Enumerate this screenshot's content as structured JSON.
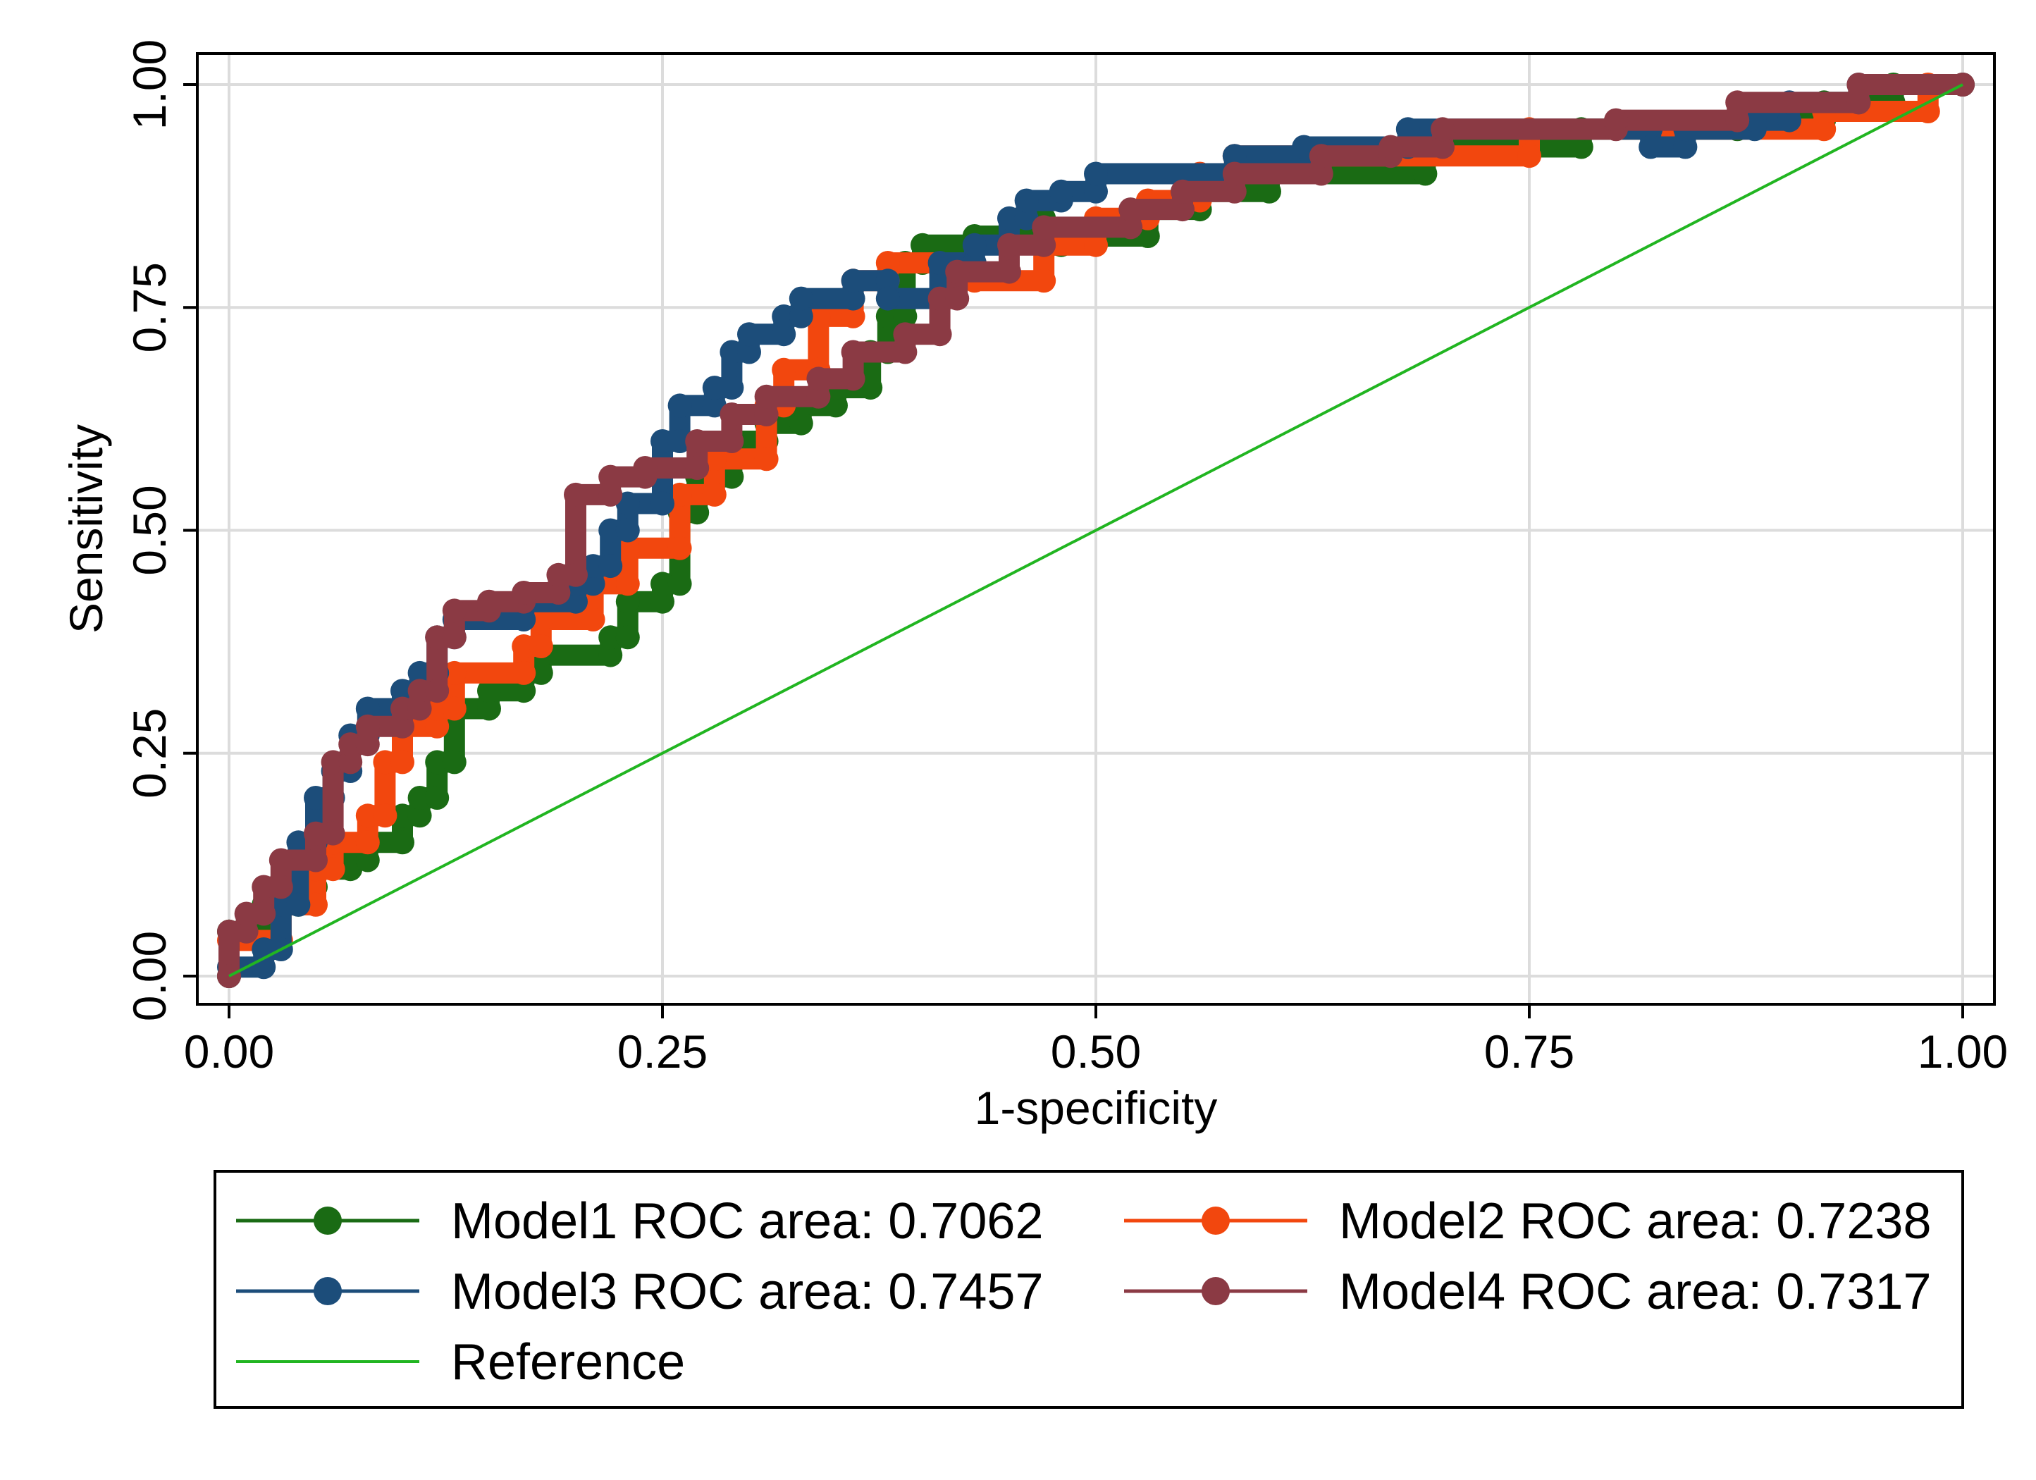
{
  "chart_data": {
    "type": "line",
    "title": "",
    "xlabel": "1-specificity",
    "ylabel": "Sensitivity",
    "xlim": [
      0,
      1
    ],
    "ylim": [
      0,
      1
    ],
    "xticks": [
      "0.00",
      "0.25",
      "0.50",
      "0.75",
      "1.00"
    ],
    "yticks": [
      "0.00",
      "0.25",
      "0.50",
      "0.75",
      "1.00"
    ],
    "grid": true,
    "legend_position": "bottom",
    "series": [
      {
        "name": "Model1 ROC area: 0.7062",
        "color": "#1a6b14",
        "marker": "circle",
        "points": [
          [
            0,
            0
          ],
          [
            0,
            0.05
          ],
          [
            0.02,
            0.05
          ],
          [
            0.02,
            0.08
          ],
          [
            0.04,
            0.08
          ],
          [
            0.04,
            0.1
          ],
          [
            0.05,
            0.1
          ],
          [
            0.05,
            0.12
          ],
          [
            0.07,
            0.12
          ],
          [
            0.07,
            0.13
          ],
          [
            0.08,
            0.13
          ],
          [
            0.08,
            0.15
          ],
          [
            0.1,
            0.15
          ],
          [
            0.1,
            0.18
          ],
          [
            0.11,
            0.18
          ],
          [
            0.11,
            0.2
          ],
          [
            0.12,
            0.2
          ],
          [
            0.12,
            0.24
          ],
          [
            0.13,
            0.24
          ],
          [
            0.13,
            0.3
          ],
          [
            0.15,
            0.3
          ],
          [
            0.15,
            0.32
          ],
          [
            0.17,
            0.32
          ],
          [
            0.17,
            0.34
          ],
          [
            0.18,
            0.34
          ],
          [
            0.18,
            0.36
          ],
          [
            0.22,
            0.36
          ],
          [
            0.22,
            0.38
          ],
          [
            0.23,
            0.38
          ],
          [
            0.23,
            0.42
          ],
          [
            0.25,
            0.42
          ],
          [
            0.25,
            0.44
          ],
          [
            0.26,
            0.44
          ],
          [
            0.26,
            0.52
          ],
          [
            0.27,
            0.52
          ],
          [
            0.27,
            0.56
          ],
          [
            0.29,
            0.56
          ],
          [
            0.29,
            0.6
          ],
          [
            0.31,
            0.6
          ],
          [
            0.31,
            0.62
          ],
          [
            0.33,
            0.62
          ],
          [
            0.33,
            0.64
          ],
          [
            0.35,
            0.64
          ],
          [
            0.35,
            0.66
          ],
          [
            0.37,
            0.66
          ],
          [
            0.37,
            0.7
          ],
          [
            0.38,
            0.7
          ],
          [
            0.38,
            0.74
          ],
          [
            0.39,
            0.74
          ],
          [
            0.39,
            0.8
          ],
          [
            0.4,
            0.8
          ],
          [
            0.4,
            0.82
          ],
          [
            0.43,
            0.82
          ],
          [
            0.43,
            0.83
          ],
          [
            0.46,
            0.83
          ],
          [
            0.46,
            0.85
          ],
          [
            0.47,
            0.85
          ],
          [
            0.47,
            0.82
          ],
          [
            0.48,
            0.82
          ],
          [
            0.48,
            0.83
          ],
          [
            0.53,
            0.83
          ],
          [
            0.53,
            0.86
          ],
          [
            0.56,
            0.86
          ],
          [
            0.56,
            0.88
          ],
          [
            0.6,
            0.88
          ],
          [
            0.6,
            0.9
          ],
          [
            0.69,
            0.9
          ],
          [
            0.69,
            0.93
          ],
          [
            0.78,
            0.93
          ],
          [
            0.78,
            0.95
          ],
          [
            0.87,
            0.95
          ],
          [
            0.87,
            0.96
          ],
          [
            0.92,
            0.96
          ],
          [
            0.92,
            0.98
          ],
          [
            0.96,
            0.98
          ],
          [
            0.96,
            1
          ],
          [
            1,
            1
          ]
        ]
      },
      {
        "name": "Model2 ROC area: 0.7238",
        "color": "#f2470e",
        "marker": "circle",
        "points": [
          [
            0,
            0
          ],
          [
            0,
            0.04
          ],
          [
            0.03,
            0.04
          ],
          [
            0.03,
            0.08
          ],
          [
            0.05,
            0.08
          ],
          [
            0.05,
            0.12
          ],
          [
            0.06,
            0.12
          ],
          [
            0.06,
            0.15
          ],
          [
            0.08,
            0.15
          ],
          [
            0.08,
            0.18
          ],
          [
            0.09,
            0.18
          ],
          [
            0.09,
            0.24
          ],
          [
            0.1,
            0.24
          ],
          [
            0.1,
            0.28
          ],
          [
            0.12,
            0.28
          ],
          [
            0.12,
            0.3
          ],
          [
            0.13,
            0.3
          ],
          [
            0.13,
            0.34
          ],
          [
            0.17,
            0.34
          ],
          [
            0.17,
            0.37
          ],
          [
            0.18,
            0.37
          ],
          [
            0.18,
            0.4
          ],
          [
            0.21,
            0.4
          ],
          [
            0.21,
            0.44
          ],
          [
            0.23,
            0.44
          ],
          [
            0.23,
            0.48
          ],
          [
            0.26,
            0.48
          ],
          [
            0.26,
            0.54
          ],
          [
            0.28,
            0.54
          ],
          [
            0.28,
            0.58
          ],
          [
            0.31,
            0.58
          ],
          [
            0.31,
            0.64
          ],
          [
            0.32,
            0.64
          ],
          [
            0.32,
            0.68
          ],
          [
            0.34,
            0.68
          ],
          [
            0.34,
            0.74
          ],
          [
            0.36,
            0.74
          ],
          [
            0.36,
            0.78
          ],
          [
            0.38,
            0.78
          ],
          [
            0.38,
            0.8
          ],
          [
            0.43,
            0.8
          ],
          [
            0.43,
            0.78
          ],
          [
            0.47,
            0.78
          ],
          [
            0.47,
            0.82
          ],
          [
            0.5,
            0.82
          ],
          [
            0.5,
            0.85
          ],
          [
            0.53,
            0.85
          ],
          [
            0.53,
            0.87
          ],
          [
            0.56,
            0.87
          ],
          [
            0.56,
            0.9
          ],
          [
            0.58,
            0.9
          ],
          [
            0.58,
            0.92
          ],
          [
            0.75,
            0.92
          ],
          [
            0.75,
            0.95
          ],
          [
            0.92,
            0.95
          ],
          [
            0.92,
            0.97
          ],
          [
            0.98,
            0.97
          ],
          [
            0.98,
            1
          ],
          [
            1,
            1
          ]
        ]
      },
      {
        "name": "Model3 ROC area: 0.7457",
        "color": "#1c4d7a",
        "marker": "circle",
        "points": [
          [
            0,
            0
          ],
          [
            0,
            0.01
          ],
          [
            0.02,
            0.01
          ],
          [
            0.02,
            0.03
          ],
          [
            0.03,
            0.03
          ],
          [
            0.03,
            0.08
          ],
          [
            0.04,
            0.08
          ],
          [
            0.04,
            0.15
          ],
          [
            0.05,
            0.15
          ],
          [
            0.05,
            0.2
          ],
          [
            0.06,
            0.2
          ],
          [
            0.06,
            0.23
          ],
          [
            0.07,
            0.23
          ],
          [
            0.07,
            0.27
          ],
          [
            0.08,
            0.27
          ],
          [
            0.08,
            0.3
          ],
          [
            0.1,
            0.3
          ],
          [
            0.1,
            0.32
          ],
          [
            0.11,
            0.32
          ],
          [
            0.11,
            0.34
          ],
          [
            0.12,
            0.34
          ],
          [
            0.12,
            0.38
          ],
          [
            0.13,
            0.38
          ],
          [
            0.13,
            0.4
          ],
          [
            0.17,
            0.4
          ],
          [
            0.17,
            0.42
          ],
          [
            0.2,
            0.42
          ],
          [
            0.2,
            0.44
          ],
          [
            0.21,
            0.44
          ],
          [
            0.21,
            0.46
          ],
          [
            0.22,
            0.46
          ],
          [
            0.22,
            0.5
          ],
          [
            0.23,
            0.5
          ],
          [
            0.23,
            0.53
          ],
          [
            0.25,
            0.53
          ],
          [
            0.25,
            0.6
          ],
          [
            0.26,
            0.6
          ],
          [
            0.26,
            0.64
          ],
          [
            0.28,
            0.64
          ],
          [
            0.28,
            0.66
          ],
          [
            0.29,
            0.66
          ],
          [
            0.29,
            0.7
          ],
          [
            0.3,
            0.7
          ],
          [
            0.3,
            0.72
          ],
          [
            0.32,
            0.72
          ],
          [
            0.32,
            0.74
          ],
          [
            0.33,
            0.74
          ],
          [
            0.33,
            0.76
          ],
          [
            0.36,
            0.76
          ],
          [
            0.36,
            0.78
          ],
          [
            0.38,
            0.78
          ],
          [
            0.38,
            0.76
          ],
          [
            0.41,
            0.76
          ],
          [
            0.41,
            0.8
          ],
          [
            0.43,
            0.8
          ],
          [
            0.43,
            0.82
          ],
          [
            0.45,
            0.82
          ],
          [
            0.45,
            0.85
          ],
          [
            0.46,
            0.85
          ],
          [
            0.46,
            0.87
          ],
          [
            0.48,
            0.87
          ],
          [
            0.48,
            0.88
          ],
          [
            0.5,
            0.88
          ],
          [
            0.5,
            0.9
          ],
          [
            0.58,
            0.9
          ],
          [
            0.58,
            0.92
          ],
          [
            0.62,
            0.92
          ],
          [
            0.62,
            0.93
          ],
          [
            0.68,
            0.93
          ],
          [
            0.68,
            0.95
          ],
          [
            0.82,
            0.95
          ],
          [
            0.82,
            0.93
          ],
          [
            0.84,
            0.93
          ],
          [
            0.84,
            0.95
          ],
          [
            0.88,
            0.95
          ],
          [
            0.88,
            0.96
          ],
          [
            0.9,
            0.96
          ],
          [
            0.9,
            0.98
          ],
          [
            0.94,
            0.98
          ],
          [
            0.94,
            1
          ],
          [
            1,
            1
          ]
        ]
      },
      {
        "name": "Model4 ROC area: 0.7317",
        "color": "#8b3a44",
        "marker": "circle",
        "points": [
          [
            0,
            0
          ],
          [
            0,
            0.05
          ],
          [
            0.01,
            0.05
          ],
          [
            0.01,
            0.07
          ],
          [
            0.02,
            0.07
          ],
          [
            0.02,
            0.1
          ],
          [
            0.03,
            0.1
          ],
          [
            0.03,
            0.13
          ],
          [
            0.05,
            0.13
          ],
          [
            0.05,
            0.16
          ],
          [
            0.06,
            0.16
          ],
          [
            0.06,
            0.24
          ],
          [
            0.07,
            0.24
          ],
          [
            0.07,
            0.26
          ],
          [
            0.08,
            0.26
          ],
          [
            0.08,
            0.28
          ],
          [
            0.1,
            0.28
          ],
          [
            0.1,
            0.3
          ],
          [
            0.11,
            0.3
          ],
          [
            0.11,
            0.32
          ],
          [
            0.12,
            0.32
          ],
          [
            0.12,
            0.38
          ],
          [
            0.13,
            0.38
          ],
          [
            0.13,
            0.41
          ],
          [
            0.15,
            0.41
          ],
          [
            0.15,
            0.42
          ],
          [
            0.17,
            0.42
          ],
          [
            0.17,
            0.43
          ],
          [
            0.19,
            0.43
          ],
          [
            0.19,
            0.45
          ],
          [
            0.2,
            0.45
          ],
          [
            0.2,
            0.54
          ],
          [
            0.22,
            0.54
          ],
          [
            0.22,
            0.56
          ],
          [
            0.24,
            0.56
          ],
          [
            0.24,
            0.57
          ],
          [
            0.27,
            0.57
          ],
          [
            0.27,
            0.6
          ],
          [
            0.29,
            0.6
          ],
          [
            0.29,
            0.63
          ],
          [
            0.31,
            0.63
          ],
          [
            0.31,
            0.65
          ],
          [
            0.34,
            0.65
          ],
          [
            0.34,
            0.67
          ],
          [
            0.36,
            0.67
          ],
          [
            0.36,
            0.7
          ],
          [
            0.39,
            0.7
          ],
          [
            0.39,
            0.72
          ],
          [
            0.41,
            0.72
          ],
          [
            0.41,
            0.76
          ],
          [
            0.42,
            0.76
          ],
          [
            0.42,
            0.79
          ],
          [
            0.45,
            0.79
          ],
          [
            0.45,
            0.82
          ],
          [
            0.47,
            0.82
          ],
          [
            0.47,
            0.84
          ],
          [
            0.52,
            0.84
          ],
          [
            0.52,
            0.86
          ],
          [
            0.55,
            0.86
          ],
          [
            0.55,
            0.88
          ],
          [
            0.58,
            0.88
          ],
          [
            0.58,
            0.9
          ],
          [
            0.63,
            0.9
          ],
          [
            0.63,
            0.92
          ],
          [
            0.67,
            0.92
          ],
          [
            0.67,
            0.93
          ],
          [
            0.7,
            0.93
          ],
          [
            0.7,
            0.95
          ],
          [
            0.8,
            0.95
          ],
          [
            0.8,
            0.96
          ],
          [
            0.87,
            0.96
          ],
          [
            0.87,
            0.98
          ],
          [
            0.94,
            0.98
          ],
          [
            0.94,
            1
          ],
          [
            1,
            1
          ]
        ]
      },
      {
        "name": "Reference",
        "color": "#21b521",
        "marker": "none",
        "points": [
          [
            0,
            0
          ],
          [
            1,
            1
          ]
        ]
      }
    ]
  }
}
